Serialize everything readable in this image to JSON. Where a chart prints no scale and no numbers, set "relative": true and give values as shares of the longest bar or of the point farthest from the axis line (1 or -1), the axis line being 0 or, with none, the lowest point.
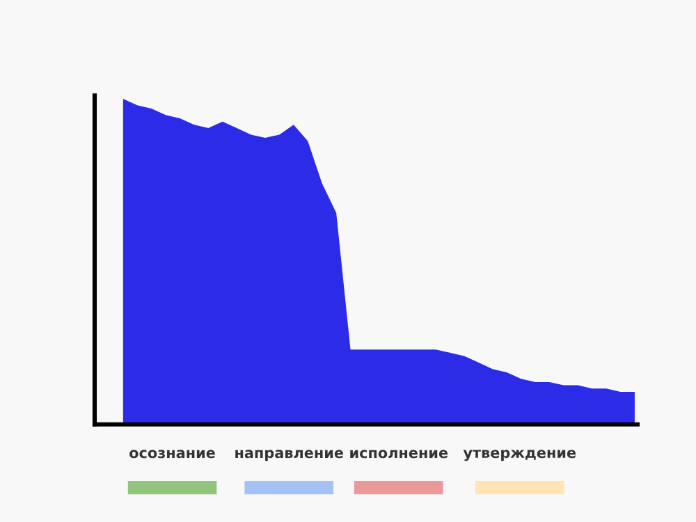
{
  "chart_data": {
    "type": "area",
    "relative": true,
    "categories": [
      null,
      null,
      null,
      null,
      null,
      null,
      null,
      null,
      null,
      null,
      null,
      null,
      null,
      null,
      null,
      null,
      null,
      null,
      null,
      null,
      null,
      null,
      null,
      null,
      null,
      null,
      null,
      null,
      null,
      null,
      null,
      null,
      null,
      null,
      null,
      null,
      null
    ],
    "series": [
      {
        "color": "#2b2be8",
        "values": [
          1.0,
          0.98,
          0.97,
          0.95,
          0.94,
          0.92,
          0.91,
          0.93,
          0.91,
          0.89,
          0.88,
          0.89,
          0.92,
          0.87,
          0.74,
          0.65,
          0.23,
          0.23,
          0.23,
          0.23,
          0.23,
          0.23,
          0.23,
          0.22,
          0.21,
          0.19,
          0.17,
          0.16,
          0.14,
          0.13,
          0.13,
          0.12,
          0.12,
          0.11,
          0.11,
          0.1,
          0.1
        ]
      }
    ],
    "annotations": [
      "осознание",
      "направление",
      "исполнение",
      "утверждение"
    ],
    "colors": [
      "#93c47d",
      "#a4c2f4",
      "#ea9999",
      "#ffe5b4"
    ]
  }
}
